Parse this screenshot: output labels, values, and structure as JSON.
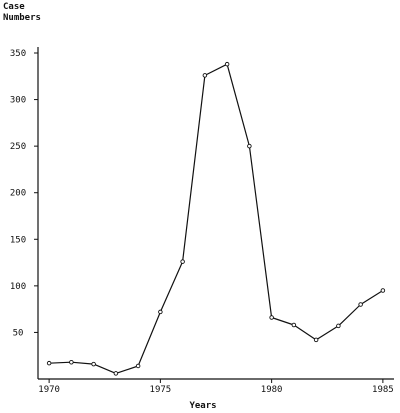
{
  "chart_data": {
    "type": "line",
    "ylabel_line1": "Case",
    "ylabel_line2": "Numbers",
    "xlabel": "Years",
    "xlim": [
      1969.5,
      1985.5
    ],
    "ylim": [
      0,
      350
    ],
    "x_ticks": [
      "1970",
      "1975",
      "1980",
      "1985"
    ],
    "x_tick_values": [
      1970,
      1975,
      1980,
      1985
    ],
    "y_ticks": [
      "50",
      "100",
      "150",
      "200",
      "250",
      "300",
      "350"
    ],
    "y_tick_values": [
      50,
      100,
      150,
      200,
      250,
      300,
      350
    ],
    "grid": false,
    "series": [
      {
        "x": [
          1970,
          1971,
          1972,
          1973,
          1974,
          1975,
          1976,
          1977,
          1978,
          1979,
          1980,
          1981,
          1982,
          1983,
          1984,
          1985
        ],
        "y": [
          17,
          18,
          16,
          6,
          14,
          72,
          126,
          326,
          338,
          250,
          66,
          58,
          42,
          57,
          80,
          95
        ]
      }
    ],
    "line_color": "#111111"
  }
}
